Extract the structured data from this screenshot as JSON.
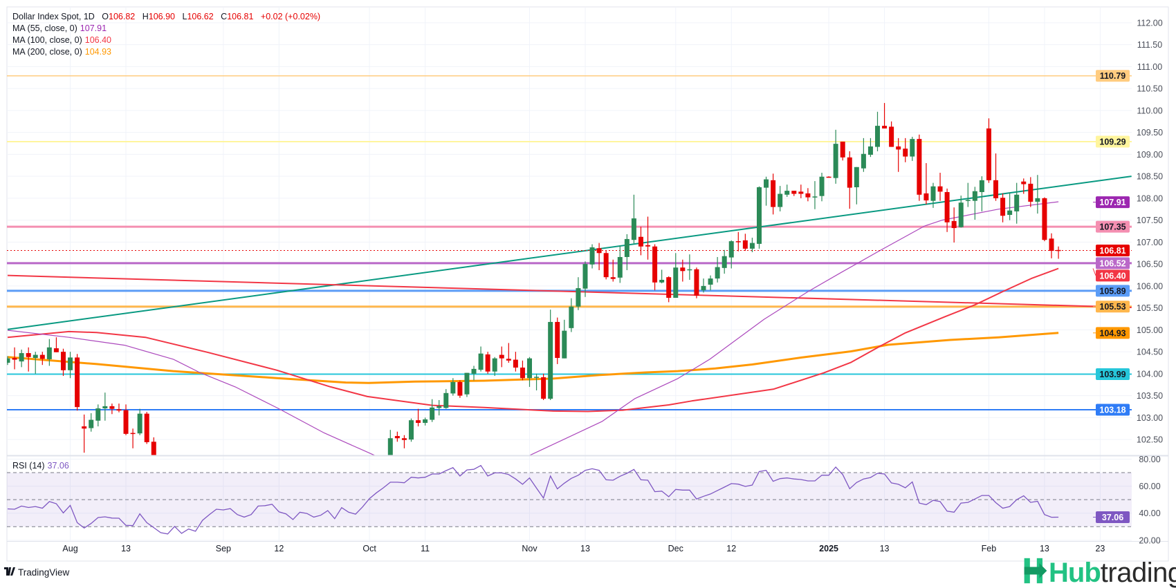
{
  "header": {
    "symbol": "Dollar Index Spot, 1D",
    "o_label": "O",
    "o": "106.82",
    "h_label": "H",
    "h": "106.90",
    "l_label": "L",
    "l": "106.62",
    "c_label": "C",
    "c": "106.81",
    "change": "+0.02 (+0.02%)"
  },
  "indicators": [
    {
      "label": "MA (55, close, 0)",
      "value": "107.91",
      "color": "#9c27b0"
    },
    {
      "label": "MA (100, close, 0)",
      "value": "106.40",
      "color": "#f23645"
    },
    {
      "label": "MA (200, close, 0)",
      "value": "104.93",
      "color": "#ff9800"
    }
  ],
  "rsi_legend": {
    "label": "RSI (14)",
    "value": "37.06"
  },
  "footer": {
    "tradingview": "TradingView"
  },
  "logo": {
    "hub": "Hub",
    "trading": "trading"
  },
  "colors": {
    "up": "#2b8a57",
    "down": "#e60000",
    "rsi": "#7e57c2"
  },
  "chart_data": {
    "type": "candlestick",
    "title": "Dollar Index Spot, 1D",
    "ylim": [
      102.14,
      112.36
    ],
    "current_price": {
      "value": 106.81,
      "label": "106.81",
      "color": "#e60000"
    },
    "price_ticks": [
      "112.00",
      "111.50",
      "111.00",
      "110.50",
      "110.00",
      "109.50",
      "109.00",
      "108.50",
      "108.00",
      "107.50",
      "107.00",
      "106.50",
      "106.00",
      "105.50",
      "105.00",
      "104.50",
      "104.00",
      "103.50",
      "103.00",
      "102.50"
    ],
    "x_labels": [
      {
        "bar": 9,
        "label": "Aug"
      },
      {
        "bar": 17,
        "label": "13"
      },
      {
        "bar": 31,
        "label": "Sep"
      },
      {
        "bar": 39,
        "label": "12"
      },
      {
        "bar": 52,
        "label": "Oct"
      },
      {
        "bar": 60,
        "label": "11"
      },
      {
        "bar": 75,
        "label": "Nov"
      },
      {
        "bar": 83,
        "label": "13"
      },
      {
        "bar": 96,
        "label": "Dec"
      },
      {
        "bar": 104,
        "label": "12"
      },
      {
        "bar": 118,
        "label": "2025",
        "bold": true
      },
      {
        "bar": 126,
        "label": "13"
      },
      {
        "bar": 141,
        "label": "Feb"
      },
      {
        "bar": 149,
        "label": "13"
      },
      {
        "bar": 157,
        "label": "23"
      }
    ],
    "levels": [
      {
        "price": 110.79,
        "label": "110.79",
        "color": "#ffcc80",
        "text": "#131722",
        "width": 1.5
      },
      {
        "price": 109.29,
        "label": "109.29",
        "color": "#fff59d",
        "text": "#131722",
        "width": 2
      },
      {
        "price": 107.35,
        "label": "107.35",
        "color": "#f48fb1",
        "text": "#131722",
        "width": 3
      },
      {
        "price": 106.52,
        "label": "106.52",
        "color": "#ba68c8",
        "text": "#ffffff",
        "width": 3
      },
      {
        "price": 105.89,
        "label": "105.89",
        "color": "#5b9cf6",
        "text": "#131722",
        "width": 3
      },
      {
        "price": 105.53,
        "label": "105.53",
        "color": "#ffb74d",
        "text": "#131722",
        "width": 3
      },
      {
        "price": 103.99,
        "label": "103.99",
        "color": "#26c6da",
        "text": "#131722",
        "width": 2
      },
      {
        "price": 103.18,
        "label": "103.18",
        "color": "#2f7cf6",
        "text": "#ffffff",
        "width": 2
      }
    ],
    "trendlines": [
      {
        "name": "rising-trendline",
        "color": "#089981",
        "from": [
          0,
          105.01
        ],
        "to": [
          161.5,
          108.5
        ]
      },
      {
        "name": "falling-trendline",
        "color": "#f23645",
        "from": [
          0,
          106.24
        ],
        "to": [
          161.5,
          105.51
        ]
      }
    ],
    "ma_labels": [
      {
        "price": 107.91,
        "label": "107.91",
        "color": "#9c27b0",
        "text": "#ffffff"
      },
      {
        "price": 106.4,
        "label": "106.40",
        "color": "#f23645",
        "text": "#ffffff"
      },
      {
        "price": 104.93,
        "label": "104.93",
        "color": "#ff9800",
        "text": "#131722"
      }
    ],
    "ma55": [
      [
        0,
        104.99
      ],
      [
        8.8,
        104.83
      ],
      [
        16.8,
        104.65
      ],
      [
        23.8,
        104.33
      ],
      [
        27.7,
        104.02
      ],
      [
        32.7,
        103.7
      ],
      [
        38.9,
        103.21
      ],
      [
        45.5,
        102.65
      ],
      [
        51.3,
        102.24
      ],
      [
        54,
        102.05
      ],
      null,
      [
        74.5,
        102.1
      ],
      [
        85.4,
        102.91
      ],
      [
        90.1,
        103.43
      ],
      [
        96.3,
        103.89
      ],
      [
        100.9,
        104.33
      ],
      [
        108.7,
        105.24
      ],
      [
        115.1,
        105.88
      ],
      [
        119.8,
        106.31
      ],
      [
        125.4,
        106.81
      ],
      [
        131.8,
        107.37
      ],
      [
        134.3,
        107.5
      ],
      [
        142.4,
        107.75
      ],
      [
        151,
        107.92
      ]
    ],
    "ma100": [
      [
        0,
        104.83
      ],
      [
        8.8,
        104.96
      ],
      [
        12.8,
        104.94
      ],
      [
        19.8,
        104.83
      ],
      [
        28.7,
        104.49
      ],
      [
        38.7,
        104.08
      ],
      [
        46.4,
        103.7
      ],
      [
        51.7,
        103.48
      ],
      [
        61,
        103.28
      ],
      [
        68.5,
        103.23
      ],
      [
        78.4,
        103.15
      ],
      [
        83.4,
        103.14
      ],
      [
        88.4,
        103.17
      ],
      [
        95,
        103.29
      ],
      [
        98.3,
        103.38
      ],
      [
        110.1,
        103.65
      ],
      [
        117.3,
        104.02
      ],
      [
        121.2,
        104.26
      ],
      [
        125.4,
        104.63
      ],
      [
        129,
        104.93
      ],
      [
        134.7,
        105.3
      ],
      [
        139,
        105.57
      ],
      [
        143.1,
        105.88
      ],
      [
        147.1,
        106.17
      ],
      [
        151,
        106.4
      ]
    ],
    "ma200": [
      [
        0,
        104.38
      ],
      [
        12.8,
        104.22
      ],
      [
        23.8,
        104.06
      ],
      [
        38.7,
        103.9
      ],
      [
        48.6,
        103.8
      ],
      [
        51.9,
        103.79
      ],
      [
        58.5,
        103.82
      ],
      [
        68.5,
        103.84
      ],
      [
        78.4,
        103.89
      ],
      [
        85.1,
        103.97
      ],
      [
        91.7,
        104.03
      ],
      [
        96.3,
        104.06
      ],
      [
        101.7,
        104.12
      ],
      [
        107,
        104.21
      ],
      [
        114.1,
        104.37
      ],
      [
        121.2,
        104.51
      ],
      [
        126.5,
        104.66
      ],
      [
        135.4,
        104.77
      ],
      [
        142.4,
        104.83
      ],
      [
        151,
        104.93
      ]
    ],
    "candles": [
      [
        104.25,
        104.4,
        104.2,
        104.35
      ],
      [
        104.36,
        104.6,
        104.1,
        104.32
      ],
      [
        104.28,
        104.55,
        104.15,
        104.47
      ],
      [
        104.47,
        104.6,
        104.05,
        104.38
      ],
      [
        104.36,
        104.5,
        104.0,
        104.43
      ],
      [
        104.43,
        104.5,
        104.2,
        104.34
      ],
      [
        104.33,
        104.79,
        104.18,
        104.6
      ],
      [
        104.58,
        104.83,
        104.49,
        104.49
      ],
      [
        104.5,
        104.57,
        103.95,
        104.08
      ],
      [
        104.08,
        104.5,
        103.9,
        104.37
      ],
      [
        104.37,
        104.45,
        103.16,
        103.24
      ],
      [
        102.8,
        103.07,
        102.2,
        102.75
      ],
      [
        102.76,
        103.1,
        102.68,
        102.95
      ],
      [
        102.93,
        103.3,
        102.8,
        103.21
      ],
      [
        103.21,
        103.57,
        102.93,
        103.26
      ],
      [
        103.26,
        103.32,
        103.08,
        103.2
      ],
      [
        103.19,
        103.32,
        103.12,
        103.16
      ],
      [
        103.17,
        103.3,
        102.6,
        102.63
      ],
      [
        102.65,
        102.75,
        102.3,
        102.64
      ],
      [
        102.64,
        103.2,
        102.6,
        103.09
      ],
      [
        103.09,
        103.13,
        102.4,
        102.44
      ],
      [
        102.45,
        102.55,
        101.8,
        101.9
      ],
      null,
      null,
      null,
      null,
      null,
      null,
      null,
      null,
      null,
      null,
      null,
      null,
      null,
      null,
      null,
      null,
      null,
      null,
      null,
      null,
      null,
      null,
      null,
      null,
      null,
      null,
      null,
      null,
      null,
      null,
      null,
      null,
      null,
      [
        102.1,
        102.72,
        102.05,
        102.53
      ],
      [
        102.58,
        102.68,
        102.45,
        102.53
      ],
      [
        102.53,
        102.6,
        102.3,
        102.49
      ],
      [
        102.5,
        102.98,
        102.45,
        102.94
      ],
      [
        102.94,
        103.2,
        102.8,
        102.88
      ],
      [
        102.88,
        103.0,
        102.82,
        102.96
      ],
      [
        102.95,
        103.42,
        102.9,
        103.23
      ],
      [
        103.22,
        103.4,
        103.05,
        103.26
      ],
      [
        103.22,
        103.65,
        103.2,
        103.56
      ],
      [
        103.55,
        103.9,
        103.5,
        103.81
      ],
      [
        103.81,
        103.85,
        103.45,
        103.5
      ],
      [
        103.53,
        104.02,
        103.47,
        104.02
      ],
      [
        104.0,
        104.18,
        103.85,
        104.11
      ],
      [
        104.09,
        104.62,
        104.05,
        104.46
      ],
      [
        104.44,
        104.5,
        104.0,
        104.05
      ],
      [
        104.05,
        104.38,
        103.95,
        104.35
      ],
      [
        104.43,
        104.62,
        104.15,
        104.35
      ],
      [
        104.34,
        104.7,
        104.25,
        104.3
      ],
      [
        104.32,
        104.5,
        104.05,
        104.14
      ],
      [
        104.14,
        104.3,
        103.85,
        103.9
      ],
      [
        103.9,
        104.38,
        103.7,
        104.35
      ],
      [
        103.91,
        104.0,
        103.62,
        103.93
      ],
      [
        103.92,
        104.0,
        103.4,
        103.43
      ],
      [
        103.43,
        105.46,
        103.4,
        105.18
      ],
      [
        105.18,
        105.28,
        104.22,
        104.36
      ],
      [
        104.35,
        105.23,
        104.35,
        104.98
      ],
      [
        105.04,
        105.72,
        104.95,
        105.53
      ],
      [
        105.53,
        106.2,
        105.45,
        105.95
      ],
      [
        105.94,
        106.56,
        105.75,
        106.5
      ],
      [
        106.49,
        106.95,
        106.4,
        106.88
      ],
      [
        106.86,
        106.98,
        106.36,
        106.75
      ],
      [
        106.75,
        106.81,
        106.15,
        106.2
      ],
      [
        106.2,
        106.6,
        106.1,
        106.16
      ],
      [
        106.19,
        106.92,
        106.07,
        106.66
      ],
      [
        106.66,
        107.18,
        106.36,
        107.07
      ],
      [
        107.05,
        108.08,
        106.97,
        107.54
      ],
      [
        107.12,
        107.35,
        106.7,
        106.9
      ],
      [
        106.93,
        107.58,
        106.6,
        106.9
      ],
      [
        106.9,
        106.95,
        105.9,
        106.08
      ],
      [
        106.08,
        106.37,
        106.06,
        106.14
      ],
      [
        106.2,
        106.22,
        105.63,
        105.73
      ],
      [
        105.73,
        106.75,
        105.73,
        106.42
      ],
      [
        106.42,
        106.6,
        106.1,
        106.34
      ],
      [
        106.36,
        106.72,
        106.14,
        106.38
      ],
      [
        106.38,
        106.42,
        105.72,
        105.78
      ],
      [
        105.9,
        106.17,
        105.85,
        106.0
      ],
      [
        106.03,
        106.24,
        105.9,
        106.17
      ],
      [
        106.17,
        106.66,
        106.08,
        106.43
      ],
      [
        106.41,
        106.82,
        106.28,
        106.68
      ],
      [
        106.65,
        107.04,
        106.4,
        107.02
      ],
      [
        107.02,
        107.23,
        106.79,
        107.0
      ],
      [
        107.04,
        107.19,
        106.8,
        106.85
      ],
      [
        106.85,
        107.1,
        106.77,
        106.98
      ],
      [
        106.96,
        108.27,
        106.85,
        108.25
      ],
      [
        108.24,
        108.49,
        107.83,
        108.43
      ],
      [
        108.41,
        108.56,
        107.63,
        107.8
      ],
      [
        107.8,
        108.28,
        107.7,
        108.1
      ],
      [
        108.08,
        108.31,
        108.03,
        108.17
      ],
      [
        108.17,
        108.17,
        108.05,
        108.1
      ],
      [
        108.15,
        108.31,
        108.0,
        108.1
      ],
      [
        108.11,
        108.23,
        107.93,
        108.02
      ],
      [
        108.02,
        108.39,
        107.75,
        108.04
      ],
      [
        108.05,
        108.58,
        107.93,
        108.49
      ],
      [
        108.49,
        108.5,
        108.47,
        108.47
      ],
      [
        108.46,
        109.56,
        108.33,
        109.24
      ],
      [
        109.29,
        109.29,
        108.86,
        108.93
      ],
      [
        108.93,
        109.07,
        107.76,
        108.24
      ],
      [
        108.25,
        108.71,
        107.86,
        108.71
      ],
      [
        108.68,
        109.37,
        108.6,
        109.01
      ],
      [
        108.99,
        109.37,
        108.94,
        109.18
      ],
      [
        109.17,
        109.97,
        109.07,
        109.65
      ],
      [
        109.65,
        110.17,
        109.59,
        109.59
      ],
      [
        109.63,
        109.75,
        109.17,
        109.17
      ],
      [
        109.18,
        109.37,
        108.6,
        109.11
      ],
      [
        109.13,
        109.37,
        108.82,
        108.95
      ],
      [
        108.95,
        109.4,
        108.85,
        109.35
      ],
      [
        109.35,
        109.45,
        107.94,
        108.08
      ],
      [
        108.11,
        108.8,
        107.86,
        107.95
      ],
      [
        107.94,
        108.35,
        107.78,
        108.27
      ],
      [
        108.27,
        108.58,
        107.94,
        108.15
      ],
      [
        108.14,
        108.22,
        107.23,
        107.45
      ],
      [
        107.48,
        107.79,
        106.99,
        107.32
      ],
      [
        107.34,
        108.06,
        107.33,
        107.9
      ],
      [
        107.94,
        108.35,
        107.8,
        107.96
      ],
      [
        107.94,
        108.26,
        107.51,
        108.16
      ],
      [
        108.14,
        108.5,
        107.7,
        108.41
      ],
      [
        109.59,
        109.82,
        108.35,
        108.41
      ],
      [
        108.41,
        109.02,
        107.94,
        108.0
      ],
      [
        108.01,
        108.11,
        107.45,
        107.6
      ],
      [
        107.62,
        108.13,
        107.5,
        107.72
      ],
      [
        107.7,
        108.35,
        107.42,
        108.08
      ],
      [
        108.38,
        108.45,
        108.1,
        108.32
      ],
      [
        108.33,
        108.48,
        107.8,
        107.92
      ],
      [
        107.92,
        108.53,
        107.65,
        108.0
      ],
      [
        108.0,
        108.02,
        107.02,
        107.05
      ],
      [
        107.08,
        107.2,
        106.63,
        106.8
      ],
      [
        106.82,
        106.9,
        106.62,
        106.81
      ]
    ],
    "rsi": {
      "title": "RSI (14)",
      "ylim": [
        19.4,
        82.3
      ],
      "band": [
        30,
        70
      ],
      "dashed_levels": [
        70,
        50,
        30
      ],
      "ticks": [
        "80.00",
        "60.00",
        "40.00",
        "20.00"
      ],
      "last_label": "37.06",
      "values": [
        43.2,
        42.9,
        45.3,
        44.2,
        44.9,
        43.7,
        48.6,
        47,
        40.2,
        45.8,
        33,
        29,
        32.4,
        36.8,
        37.3,
        36.4,
        36.3,
        31,
        30.8,
        39.5,
        33,
        29.3,
        25.6,
        24.6,
        30.2,
        25.1,
        28.3,
        26.6,
        34.7,
        39,
        42.9,
        42.4,
        43.4,
        39,
        37.1,
        39,
        45.3,
        45.6,
        46.6,
        41,
        39.5,
        35.3,
        40.7,
        39.8,
        37.1,
        38.5,
        41.9,
        35.9,
        44.1,
        40.7,
        39.3,
        44.6,
        50.8,
        55.1,
        58.8,
        62.9,
        62.9,
        62.5,
        66.6,
        66.1,
        66.6,
        69,
        69,
        71.5,
        73.7,
        67.5,
        72,
        72.5,
        75.3,
        67.5,
        69.8,
        69.8,
        68.6,
        65.3,
        61.4,
        66.1,
        58.5,
        51.2,
        67.5,
        58,
        62.2,
        65.8,
        68.1,
        71.7,
        72.9,
        71.7,
        64.7,
        64.4,
        67.3,
        69.5,
        72.4,
        64.7,
        64.4,
        55.9,
        56.3,
        52.2,
        57.6,
        57.1,
        57.1,
        50.5,
        52.5,
        54.2,
        56.8,
        59.3,
        61.9,
        61.5,
        59.8,
        60.8,
        70.8,
        71.7,
        63.6,
        65.6,
        66.1,
        65.3,
        64.9,
        63.9,
        63.9,
        68.1,
        68.1,
        74.1,
        68.6,
        58.1,
        62.7,
        65.3,
        66.4,
        69.5,
        69,
        62.4,
        61.4,
        58.8,
        63.1,
        47.5,
        46.3,
        49.5,
        48.6,
        41.5,
        40.7,
        47.5,
        48,
        50.5,
        53.1,
        53.1,
        47.8,
        43.7,
        44.9,
        50,
        52.9,
        48,
        48.8,
        39,
        37,
        37.06
      ]
    }
  }
}
